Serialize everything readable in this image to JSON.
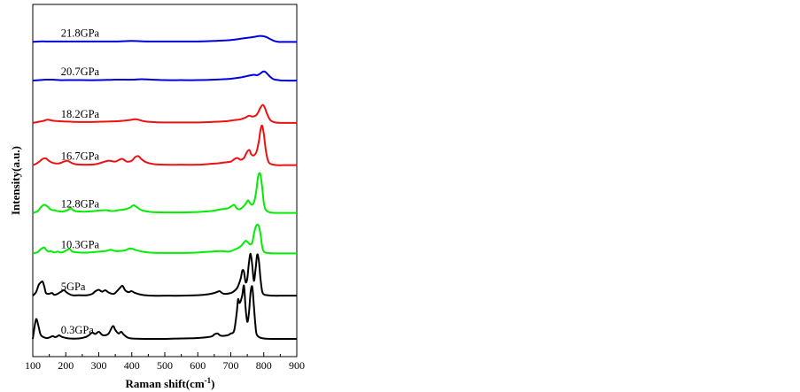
{
  "chart_data": {
    "type": "line",
    "title": "",
    "xlabel": "Raman shift(cm",
    "xlabel_superscript": "-1",
    "xlabel_suffix": ")",
    "ylabel": "Intensity(a.u.)",
    "xlim": [
      100,
      900
    ],
    "xticks": [
      "100",
      "200",
      "300",
      "400",
      "500",
      "600",
      "700",
      "800",
      "900"
    ],
    "yticks": "none",
    "grid": false,
    "legend": "none (each spectrum labeled in place)",
    "series": [
      {
        "name": "0.3GPa",
        "color": "#000000",
        "baseline": 0.0,
        "x": [
          100,
          108,
          112,
          118,
          125,
          140,
          150,
          160,
          168,
          175,
          180,
          190,
          210,
          240,
          260,
          270,
          280,
          290,
          300,
          310,
          320,
          330,
          340,
          345,
          350,
          360,
          368,
          375,
          385,
          400,
          450,
          500,
          550,
          600,
          640,
          650,
          660,
          670,
          690,
          700,
          710,
          718,
          722,
          726,
          730,
          735,
          740,
          745,
          750,
          755,
          760,
          765,
          770,
          775,
          780,
          800,
          850,
          900
        ],
        "y": [
          0.02,
          0.4,
          0.45,
          0.28,
          0.1,
          0.04,
          0.05,
          0.08,
          0.06,
          0.08,
          0.1,
          0.06,
          0.03,
          0.03,
          0.06,
          0.1,
          0.16,
          0.13,
          0.18,
          0.11,
          0.1,
          0.14,
          0.28,
          0.3,
          0.22,
          0.14,
          0.18,
          0.12,
          0.06,
          0.03,
          0.02,
          0.02,
          0.03,
          0.04,
          0.07,
          0.12,
          0.14,
          0.09,
          0.1,
          0.14,
          0.2,
          0.6,
          0.9,
          0.82,
          0.86,
          1.0,
          1.2,
          0.7,
          0.4,
          0.6,
          1.05,
          1.18,
          0.75,
          0.3,
          0.1,
          0.03,
          0.02,
          0.02
        ]
      },
      {
        "name": "5GPa",
        "color": "#000000",
        "baseline": 0.96,
        "x": [
          100,
          110,
          118,
          125,
          130,
          135,
          140,
          148,
          158,
          165,
          175,
          188,
          195,
          205,
          220,
          240,
          265,
          280,
          290,
          300,
          310,
          320,
          330,
          345,
          355,
          365,
          372,
          380,
          390,
          400,
          410,
          430,
          460,
          500,
          550,
          600,
          630,
          650,
          665,
          670,
          680,
          700,
          710,
          720,
          730,
          735,
          740,
          745,
          750,
          755,
          760,
          765,
          770,
          775,
          780,
          785,
          790,
          795,
          800,
          810,
          830,
          860,
          900
        ],
        "y": [
          0.02,
          0.1,
          0.26,
          0.32,
          0.33,
          0.22,
          0.08,
          0.06,
          0.08,
          0.04,
          0.06,
          0.12,
          0.14,
          0.08,
          0.03,
          0.03,
          0.03,
          0.06,
          0.12,
          0.15,
          0.11,
          0.14,
          0.09,
          0.06,
          0.12,
          0.2,
          0.24,
          0.14,
          0.1,
          0.12,
          0.08,
          0.04,
          0.02,
          0.02,
          0.02,
          0.03,
          0.05,
          0.08,
          0.12,
          0.1,
          0.06,
          0.08,
          0.12,
          0.2,
          0.4,
          0.58,
          0.55,
          0.32,
          0.4,
          0.75,
          0.95,
          0.7,
          0.35,
          0.6,
          0.93,
          0.8,
          0.4,
          0.12,
          0.05,
          0.03,
          0.02,
          0.02,
          0.02
        ]
      },
      {
        "name": "10.3GPa",
        "color": "#00ee00",
        "baseline": 1.9,
        "x": [
          100,
          115,
          125,
          135,
          140,
          148,
          155,
          165,
          175,
          185,
          195,
          205,
          212,
          220,
          240,
          270,
          300,
          320,
          335,
          345,
          360,
          380,
          395,
          410,
          420,
          440,
          480,
          520,
          560,
          600,
          640,
          670,
          690,
          700,
          710,
          720,
          730,
          740,
          745,
          750,
          758,
          765,
          770,
          775,
          780,
          785,
          790,
          795,
          800,
          810,
          830,
          860,
          900
        ],
        "y": [
          0.02,
          0.05,
          0.12,
          0.15,
          0.1,
          0.06,
          0.07,
          0.04,
          0.06,
          0.04,
          0.06,
          0.1,
          0.12,
          0.06,
          0.04,
          0.04,
          0.06,
          0.07,
          0.1,
          0.08,
          0.07,
          0.09,
          0.13,
          0.1,
          0.08,
          0.05,
          0.03,
          0.03,
          0.03,
          0.04,
          0.06,
          0.07,
          0.06,
          0.07,
          0.1,
          0.13,
          0.18,
          0.26,
          0.3,
          0.28,
          0.22,
          0.26,
          0.45,
          0.6,
          0.66,
          0.62,
          0.45,
          0.18,
          0.06,
          0.03,
          0.02,
          0.02,
          0.02
        ]
      },
      {
        "name": "12.8GPa",
        "color": "#00ee00",
        "baseline": 2.8,
        "x": [
          100,
          115,
          125,
          135,
          145,
          155,
          165,
          175,
          190,
          205,
          215,
          225,
          240,
          270,
          300,
          320,
          340,
          360,
          380,
          395,
          405,
          415,
          430,
          460,
          500,
          550,
          600,
          640,
          670,
          690,
          700,
          710,
          718,
          725,
          735,
          745,
          752,
          758,
          765,
          772,
          778,
          782,
          786,
          790,
          795,
          800,
          805,
          815,
          830,
          860,
          900
        ],
        "y": [
          0.02,
          0.06,
          0.15,
          0.2,
          0.16,
          0.09,
          0.08,
          0.06,
          0.05,
          0.08,
          0.12,
          0.07,
          0.05,
          0.05,
          0.07,
          0.08,
          0.06,
          0.08,
          0.1,
          0.14,
          0.19,
          0.15,
          0.08,
          0.04,
          0.03,
          0.03,
          0.04,
          0.06,
          0.1,
          0.12,
          0.16,
          0.2,
          0.12,
          0.1,
          0.14,
          0.22,
          0.3,
          0.24,
          0.2,
          0.3,
          0.55,
          0.8,
          0.9,
          0.86,
          0.6,
          0.25,
          0.1,
          0.04,
          0.02,
          0.02,
          0.02
        ]
      },
      {
        "name": "16.7GPa",
        "color": "#ee1111",
        "baseline": 3.86,
        "x": [
          100,
          110,
          120,
          130,
          140,
          148,
          158,
          168,
          180,
          195,
          205,
          215,
          230,
          260,
          290,
          310,
          330,
          350,
          370,
          385,
          400,
          410,
          420,
          430,
          445,
          470,
          500,
          550,
          600,
          640,
          660,
          680,
          700,
          710,
          720,
          730,
          740,
          748,
          756,
          762,
          770,
          778,
          785,
          790,
          795,
          800,
          806,
          812,
          820,
          840,
          860,
          900
        ],
        "y": [
          0.02,
          0.05,
          0.1,
          0.16,
          0.17,
          0.12,
          0.08,
          0.06,
          0.06,
          0.1,
          0.12,
          0.08,
          0.04,
          0.03,
          0.04,
          0.08,
          0.12,
          0.1,
          0.16,
          0.1,
          0.12,
          0.2,
          0.22,
          0.15,
          0.08,
          0.04,
          0.03,
          0.03,
          0.03,
          0.05,
          0.06,
          0.08,
          0.1,
          0.15,
          0.18,
          0.14,
          0.18,
          0.3,
          0.36,
          0.26,
          0.24,
          0.32,
          0.55,
          0.8,
          0.9,
          0.72,
          0.36,
          0.14,
          0.05,
          0.02,
          0.02,
          0.02
        ]
      },
      {
        "name": "18.2GPa",
        "color": "#ee1111",
        "baseline": 4.8,
        "x": [
          100,
          115,
          130,
          145,
          160,
          175,
          200,
          240,
          280,
          320,
          360,
          390,
          410,
          420,
          435,
          460,
          500,
          550,
          600,
          640,
          670,
          690,
          710,
          730,
          745,
          755,
          765,
          775,
          782,
          790,
          797,
          803,
          810,
          820,
          835,
          860,
          900
        ],
        "y": [
          0.02,
          0.04,
          0.06,
          0.09,
          0.07,
          0.06,
          0.05,
          0.04,
          0.04,
          0.05,
          0.06,
          0.08,
          0.1,
          0.09,
          0.06,
          0.04,
          0.03,
          0.03,
          0.03,
          0.04,
          0.05,
          0.06,
          0.08,
          0.1,
          0.14,
          0.18,
          0.16,
          0.18,
          0.24,
          0.36,
          0.42,
          0.36,
          0.22,
          0.08,
          0.03,
          0.02,
          0.02
        ]
      },
      {
        "name": "20.7GPa",
        "color": "#0000dd",
        "baseline": 5.74,
        "x": [
          100,
          120,
          140,
          160,
          180,
          200,
          250,
          300,
          350,
          400,
          430,
          460,
          500,
          550,
          600,
          650,
          700,
          730,
          755,
          770,
          780,
          790,
          798,
          805,
          812,
          820,
          830,
          845,
          860,
          900
        ],
        "y": [
          0.02,
          0.03,
          0.04,
          0.04,
          0.03,
          0.03,
          0.03,
          0.03,
          0.04,
          0.04,
          0.05,
          0.04,
          0.03,
          0.03,
          0.03,
          0.04,
          0.06,
          0.09,
          0.13,
          0.15,
          0.14,
          0.18,
          0.22,
          0.21,
          0.16,
          0.1,
          0.05,
          0.03,
          0.02,
          0.02
        ]
      },
      {
        "name": "21.8GPa",
        "color": "#0000dd",
        "baseline": 6.6,
        "x": [
          100,
          120,
          140,
          160,
          180,
          200,
          250,
          300,
          350,
          400,
          450,
          500,
          550,
          600,
          650,
          700,
          740,
          770,
          785,
          795,
          802,
          810,
          820,
          832,
          845,
          860,
          900
        ],
        "y": [
          0.02,
          0.03,
          0.03,
          0.03,
          0.03,
          0.03,
          0.03,
          0.03,
          0.03,
          0.04,
          0.03,
          0.03,
          0.03,
          0.03,
          0.04,
          0.06,
          0.1,
          0.13,
          0.15,
          0.15,
          0.14,
          0.12,
          0.08,
          0.04,
          0.02,
          0.02,
          0.02
        ]
      }
    ],
    "annotations": [
      {
        "text": "0.3GPa",
        "x": 185
      },
      {
        "text": "5GPa",
        "x": 185
      },
      {
        "text": "10.3GPa",
        "x": 185
      },
      {
        "text": "12.8GPa",
        "x": 185
      },
      {
        "text": "16.7GPa",
        "x": 185
      },
      {
        "text": "18.2GPa",
        "x": 185
      },
      {
        "text": "20.7GPa",
        "x": 185
      },
      {
        "text": "21.8GPa",
        "x": 185
      }
    ]
  }
}
